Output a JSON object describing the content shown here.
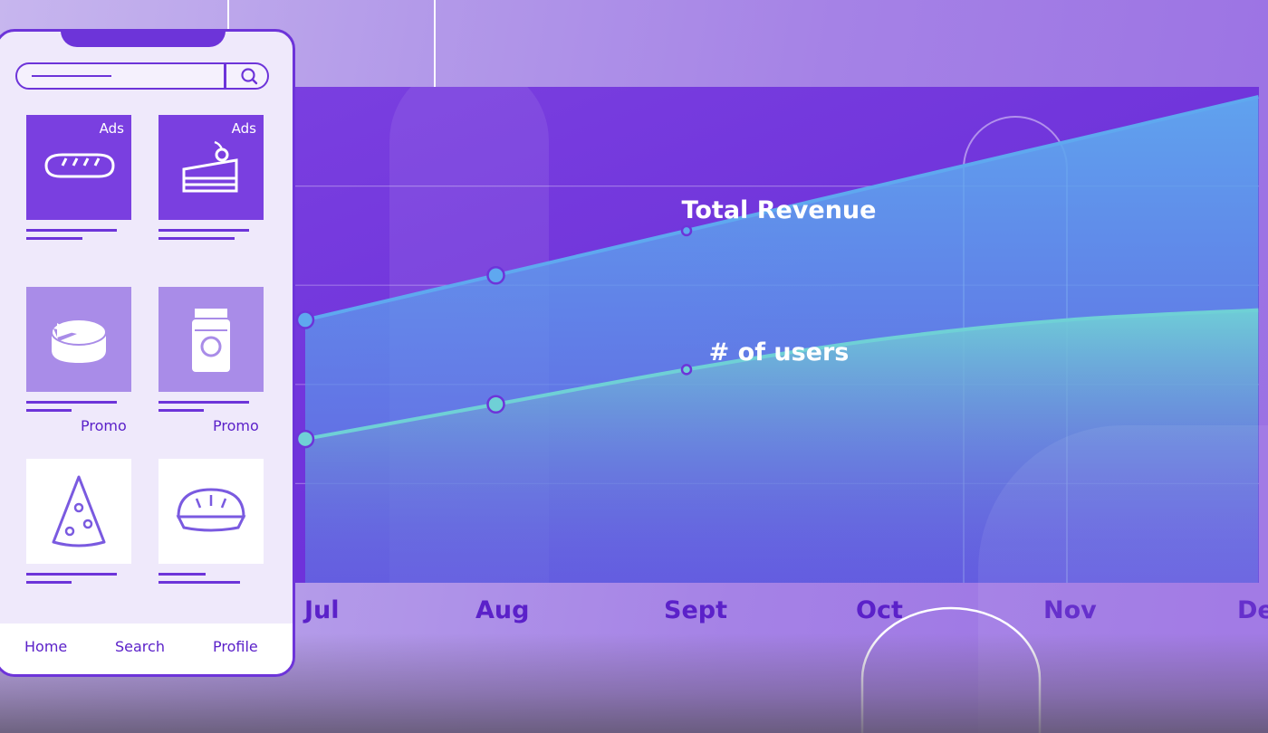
{
  "phone": {
    "cards": [
      {
        "badge": "Ads",
        "icon": "bread-icon",
        "style": "ads"
      },
      {
        "badge": "Ads",
        "icon": "cake-slice-icon",
        "style": "ads"
      },
      {
        "badge": "",
        "label": "Promo",
        "icon": "cheese-wheel-icon",
        "style": "promo"
      },
      {
        "badge": "",
        "label": "Promo",
        "icon": "jar-icon",
        "style": "promo"
      },
      {
        "badge": "",
        "icon": "pizza-slice-icon",
        "style": "plain"
      },
      {
        "badge": "",
        "icon": "pie-icon",
        "style": "plain"
      }
    ],
    "nav": {
      "home": "Home",
      "search": "Search",
      "profile": "Profile"
    }
  },
  "chart_data": {
    "type": "area",
    "categories": [
      "Jul",
      "Aug",
      "Sept",
      "Oct",
      "Nov",
      "Dec"
    ],
    "series": [
      {
        "name": "Total Revenue",
        "values": [
          2.65,
          3.1,
          3.55,
          4.0,
          4.45,
          4.9
        ],
        "color": "#5fa8ef"
      },
      {
        "name": "# of users",
        "values": [
          1.45,
          1.8,
          2.15,
          2.45,
          2.65,
          2.75
        ],
        "color": "#6fd0d6"
      }
    ],
    "ylim": [
      0,
      5
    ],
    "grid": true,
    "legend": "inline labels"
  },
  "colors": {
    "accent": "#6d34d9",
    "panel": "#7a3fe0",
    "revenue": "#5fa8ef",
    "users": "#6fd0d6"
  }
}
